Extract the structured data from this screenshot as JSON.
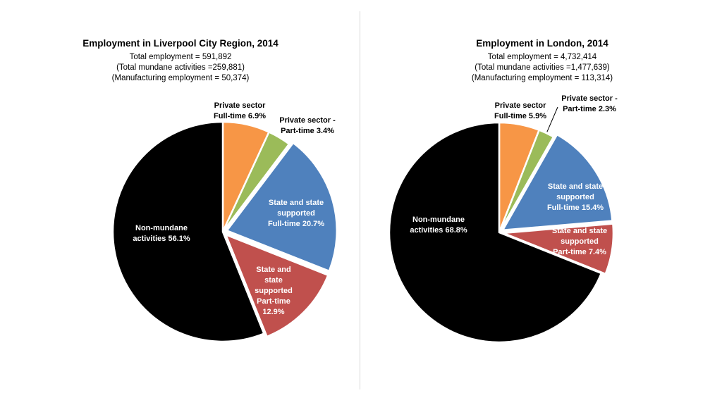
{
  "charts": [
    {
      "title": "Employment in Liverpool City Region, 2014",
      "subtitle_lines": [
        "Total employment = 591,892",
        "(Total mundane activities =259,881)",
        "(Manufacturing employment = 50,374)"
      ]
    },
    {
      "title": "Employment in London, 2014",
      "subtitle_lines": [
        "Total employment = 4,732,414",
        "(Total mundane activities =1,477,639)",
        "(Manufacturing employment = 113,314)"
      ]
    }
  ],
  "chart_data": [
    {
      "type": "pie",
      "title": "Employment in Liverpool City Region, 2014",
      "slices": [
        {
          "label_lines": [
            "Private sector",
            "Full-time  6.9%"
          ],
          "value": 6.9,
          "color": "#f79646",
          "label_color": "#000000",
          "label_pos": "outside"
        },
        {
          "label_lines": [
            "Private sector -",
            "Part-time  3.4%"
          ],
          "value": 3.4,
          "color": "#9bbb59",
          "label_color": "#000000",
          "label_pos": "outside"
        },
        {
          "label_lines": [
            "State and state",
            "supported",
            "Full-time  20.7%"
          ],
          "value": 20.7,
          "color": "#4f81bd",
          "label_color": "#ffffff",
          "label_pos": "inside"
        },
        {
          "label_lines": [
            "State and",
            "state",
            "supported",
            "Part-time",
            "12.9%"
          ],
          "value": 12.9,
          "color": "#c0504d",
          "label_color": "#ffffff",
          "label_pos": "inside"
        },
        {
          "label_lines": [
            "Non-mundane",
            "activities  56.1%"
          ],
          "value": 56.1,
          "color": "#000000",
          "label_color": "#ffffff",
          "label_pos": "inside"
        }
      ]
    },
    {
      "type": "pie",
      "title": "Employment in London, 2014",
      "slices": [
        {
          "label_lines": [
            "Private sector",
            "Full-time  5.9%"
          ],
          "value": 5.9,
          "color": "#f79646",
          "label_color": "#000000",
          "label_pos": "outside"
        },
        {
          "label_lines": [
            "Private sector -",
            "Part-time  2.3%"
          ],
          "value": 2.3,
          "color": "#9bbb59",
          "label_color": "#000000",
          "label_pos": "outside"
        },
        {
          "label_lines": [
            "State and state",
            "supported",
            "Full-time  15.4%"
          ],
          "value": 15.4,
          "color": "#4f81bd",
          "label_color": "#ffffff",
          "label_pos": "inside"
        },
        {
          "label_lines": [
            "State and state",
            "supported",
            "Part-time  7.4%"
          ],
          "value": 7.4,
          "color": "#c0504d",
          "label_color": "#ffffff",
          "label_pos": "inside"
        },
        {
          "label_lines": [
            "Non-mundane",
            "activities  68.8%"
          ],
          "value": 68.8,
          "color": "#000000",
          "label_color": "#ffffff",
          "label_pos": "inside"
        }
      ]
    }
  ]
}
